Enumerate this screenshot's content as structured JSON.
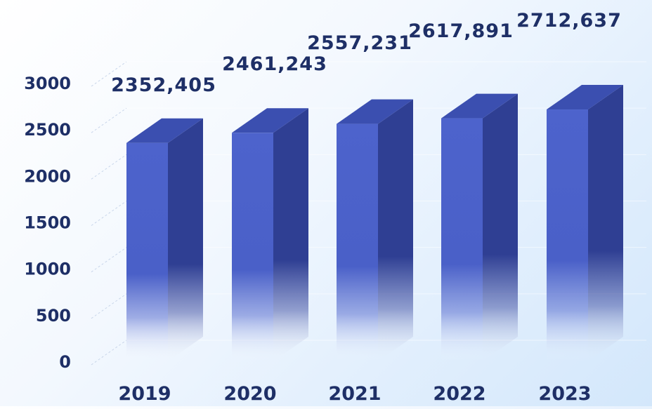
{
  "chart_data": {
    "type": "bar",
    "title": "",
    "xlabel": "",
    "ylabel": "",
    "categories": [
      "2019",
      "2020",
      "2021",
      "2022",
      "2023"
    ],
    "values": [
      2352.405,
      2461.243,
      2557.231,
      2617.891,
      2712.637
    ],
    "data_labels": [
      "2352,405",
      "2461,243",
      "2557,231",
      "2617,891",
      "2712,637"
    ],
    "ylim": [
      0,
      3000
    ],
    "yticks": [
      "0",
      "500",
      "1000",
      "1500",
      "2000",
      "2500",
      "3000"
    ],
    "grid": false,
    "legend": "none",
    "style": "3d-column",
    "colors": {
      "bar_front": "#4a60c8",
      "bar_side": "#2f3f93",
      "bar_top": "#3b4fb0",
      "text": "#1e2f66"
    }
  }
}
